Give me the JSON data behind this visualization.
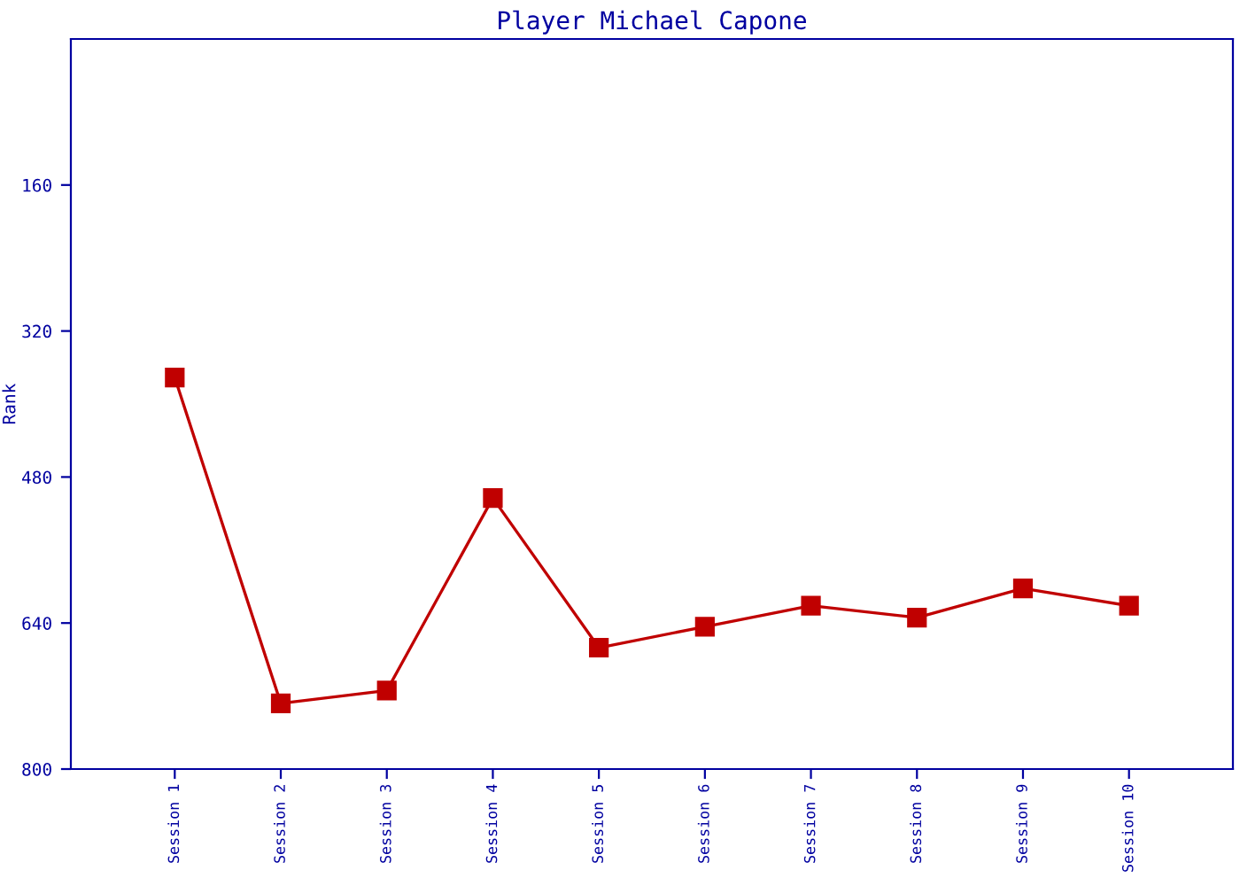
{
  "chart_data": {
    "type": "line",
    "title": "Player Michael Capone",
    "ylabel": "Rank",
    "categories": [
      "Session 1",
      "Session 2",
      "Session 3",
      "Session 4",
      "Session 5",
      "Session 6",
      "Session 7",
      "Session 8",
      "Session 9",
      "Session 10"
    ],
    "series": [
      {
        "color": "#c00000",
        "values": [
          371,
          728,
          714,
          503,
          667,
          644,
          621,
          634,
          602,
          621
        ]
      }
    ],
    "ylim": [
      800,
      0
    ],
    "yticks": [
      160,
      320,
      480,
      640,
      800
    ],
    "marker": "square",
    "line_style": "solid",
    "grid": false,
    "legend": false
  }
}
